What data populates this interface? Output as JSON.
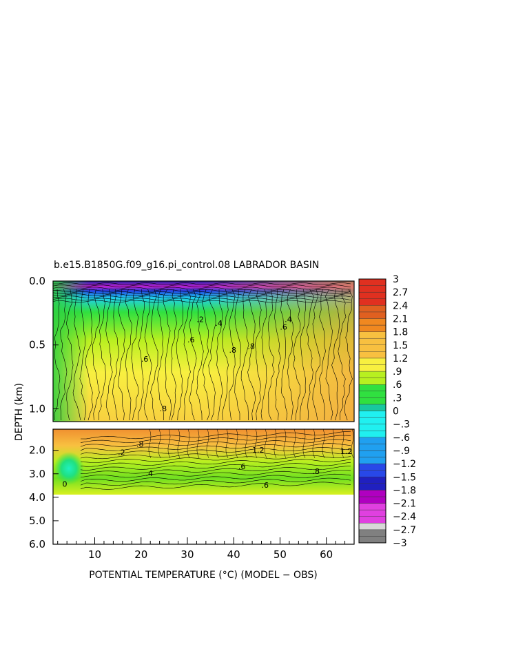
{
  "chart_data": {
    "type": "heatmap",
    "title": "b.e15.B1850G.f09_g16.pi_control.08 LABRADOR BASIN",
    "xlabel": "POTENTIAL TEMPERATURE (°C) (MODEL − OBS)",
    "ylabel": "DEPTH (km)",
    "xlim": [
      1,
      66
    ],
    "x_ticks": [
      "10",
      "20",
      "30",
      "40",
      "50",
      "60"
    ],
    "x_tick_values": [
      10,
      20,
      30,
      40,
      50,
      60
    ],
    "upper_panel": {
      "ylim": [
        0.0,
        1.1
      ],
      "y_ticks": [
        "0.0",
        "0.5",
        "1.0"
      ],
      "y_tick_values": [
        0.0,
        0.5,
        1.0
      ]
    },
    "lower_panel": {
      "ylim": [
        1.1,
        6.0
      ],
      "y_ticks": [
        "2.0",
        "3.0",
        "4.0",
        "5.0",
        "6.0"
      ],
      "y_tick_values": [
        2.0,
        3.0,
        4.0,
        5.0,
        6.0
      ],
      "data_bottom_depth": 3.9
    },
    "colorbar": {
      "range": [
        -3,
        3
      ],
      "labels": [
        "3",
        "2.7",
        "2.4",
        "2.1",
        "1.8",
        "1.5",
        "1.2",
        ".9",
        ".6",
        ".3",
        "0",
        "−.3",
        "−.6",
        "−.9",
        "−1.2",
        "−1.5",
        "−1.8",
        "−2.1",
        "−2.4",
        "−2.7",
        "−3"
      ],
      "stops": [
        {
          "value": -3.0,
          "color": "#808080"
        },
        {
          "value": -2.7,
          "color": "#d8d8d8"
        },
        {
          "value": -2.55,
          "color": "#e040e0"
        },
        {
          "value": -2.1,
          "color": "#b000c0"
        },
        {
          "value": -1.8,
          "color": "#2020c0"
        },
        {
          "value": -1.5,
          "color": "#2848e8"
        },
        {
          "value": -1.2,
          "color": "#20a0f0"
        },
        {
          "value": -0.6,
          "color": "#20f0f0"
        },
        {
          "value": 0.0,
          "color": "#18c8a0"
        },
        {
          "value": 0.15,
          "color": "#30e040"
        },
        {
          "value": 0.6,
          "color": "#b8f020"
        },
        {
          "value": 0.9,
          "color": "#f8f040"
        },
        {
          "value": 1.2,
          "color": "#f8c040"
        },
        {
          "value": 1.8,
          "color": "#f08820"
        },
        {
          "value": 2.1,
          "color": "#e06020"
        },
        {
          "value": 2.4,
          "color": "#e03020"
        },
        {
          "value": 3.0,
          "color": "#c00000"
        }
      ]
    },
    "contour_labels": [
      {
        "text": ".2",
        "x": 32,
        "depth": 0.32
      },
      {
        "text": ".4",
        "x": 36,
        "depth": 0.35
      },
      {
        "text": ".6",
        "x": 50,
        "depth": 0.38
      },
      {
        "text": ".4",
        "x": 51,
        "depth": 0.32
      },
      {
        "text": ".6",
        "x": 20,
        "depth": 0.63
      },
      {
        "text": ".6",
        "x": 30,
        "depth": 0.48
      },
      {
        "text": ".8",
        "x": 39,
        "depth": 0.56
      },
      {
        "text": ".8",
        "x": 43,
        "depth": 0.53
      },
      {
        "text": ".8",
        "x": 24,
        "depth": 1.02
      },
      {
        "text": "1.2",
        "x": 44,
        "depth": 2.1
      },
      {
        "text": "1.2",
        "x": 63,
        "depth": 2.15
      },
      {
        "text": ".4",
        "x": 21,
        "depth": 3.1
      },
      {
        "text": ".6",
        "x": 41,
        "depth": 2.8
      },
      {
        "text": ".8",
        "x": 57,
        "depth": 3.0
      },
      {
        "text": ".6",
        "x": 46,
        "depth": 3.6
      },
      {
        "text": ".2",
        "x": 15,
        "depth": 2.2
      },
      {
        "text": "0",
        "x": 3,
        "depth": 3.55
      },
      {
        "text": ".8",
        "x": 19,
        "depth": 1.85
      }
    ]
  }
}
